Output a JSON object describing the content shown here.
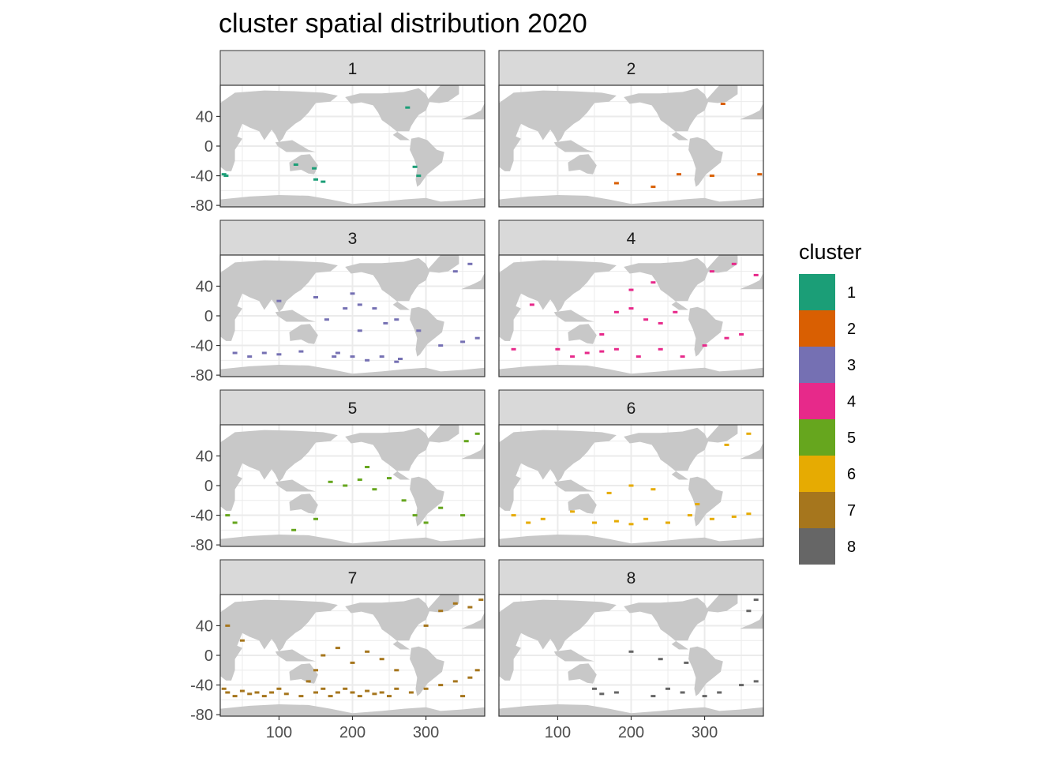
{
  "chart_data": {
    "type": "heatmap",
    "title": "cluster spatial distribution 2020",
    "xlabel": "",
    "ylabel": "",
    "facets": [
      "1",
      "2",
      "3",
      "4",
      "5",
      "6",
      "7",
      "8"
    ],
    "facet_layout": {
      "ncol": 2,
      "nrow": 4
    },
    "xlim": [
      20,
      380
    ],
    "ylim": [
      -82,
      82
    ],
    "x_ticks": [
      100,
      200,
      300
    ],
    "y_ticks": [
      40,
      0,
      -40,
      -80
    ],
    "grid": true,
    "legend": {
      "title": "cluster",
      "placement": "right",
      "entries": [
        {
          "label": "1",
          "color": "#1B9E77"
        },
        {
          "label": "2",
          "color": "#D95F02"
        },
        {
          "label": "3",
          "color": "#7570B3"
        },
        {
          "label": "4",
          "color": "#E7298A"
        },
        {
          "label": "5",
          "color": "#66A61E"
        },
        {
          "label": "6",
          "color": "#E6AB02"
        },
        {
          "label": "7",
          "color": "#A6761D"
        },
        {
          "label": "8",
          "color": "#666666"
        }
      ]
    },
    "land_color": "#C8C8C8",
    "clusters": [
      {
        "cluster": "1",
        "points": [
          [
            25,
            -38
          ],
          [
            28,
            -40
          ],
          [
            150,
            -45
          ],
          [
            160,
            -48
          ],
          [
            275,
            52
          ],
          [
            285,
            -28
          ],
          [
            290,
            -40
          ],
          [
            148,
            -30
          ],
          [
            123,
            -25
          ]
        ]
      },
      {
        "cluster": "2",
        "points": [
          [
            325,
            57
          ],
          [
            375,
            -38
          ],
          [
            310,
            -40
          ],
          [
            230,
            -55
          ],
          [
            265,
            -38
          ],
          [
            180,
            -50
          ]
        ]
      },
      {
        "cluster": "3",
        "points": [
          [
            100,
            20
          ],
          [
            150,
            25
          ],
          [
            190,
            10
          ],
          [
            200,
            30
          ],
          [
            210,
            15
          ],
          [
            230,
            10
          ],
          [
            245,
            -10
          ],
          [
            260,
            -5
          ],
          [
            290,
            -20
          ],
          [
            180,
            -50
          ],
          [
            200,
            -55
          ],
          [
            220,
            -60
          ],
          [
            240,
            -55
          ],
          [
            260,
            -62
          ],
          [
            100,
            -52
          ],
          [
            80,
            -50
          ],
          [
            60,
            -55
          ],
          [
            40,
            -50
          ],
          [
            340,
            60
          ],
          [
            360,
            70
          ],
          [
            320,
            -40
          ],
          [
            350,
            -35
          ],
          [
            210,
            -20
          ],
          [
            165,
            -5
          ],
          [
            130,
            -48
          ],
          [
            175,
            -55
          ],
          [
            265,
            -58
          ],
          [
            370,
            -30
          ]
        ]
      },
      {
        "cluster": "4",
        "points": [
          [
            65,
            15
          ],
          [
            180,
            5
          ],
          [
            200,
            10
          ],
          [
            220,
            -5
          ],
          [
            240,
            -10
          ],
          [
            260,
            5
          ],
          [
            300,
            -40
          ],
          [
            330,
            -30
          ],
          [
            350,
            -25
          ],
          [
            100,
            -45
          ],
          [
            120,
            -55
          ],
          [
            140,
            -50
          ],
          [
            160,
            -48
          ],
          [
            180,
            -45
          ],
          [
            210,
            -55
          ],
          [
            240,
            -45
          ],
          [
            270,
            -55
          ],
          [
            310,
            60
          ],
          [
            340,
            70
          ],
          [
            370,
            55
          ],
          [
            200,
            35
          ],
          [
            230,
            45
          ],
          [
            40,
            -45
          ],
          [
            160,
            -25
          ]
        ]
      },
      {
        "cluster": "5",
        "points": [
          [
            30,
            -40
          ],
          [
            40,
            -50
          ],
          [
            150,
            -45
          ],
          [
            170,
            5
          ],
          [
            190,
            0
          ],
          [
            210,
            8
          ],
          [
            230,
            -5
          ],
          [
            250,
            10
          ],
          [
            285,
            -40
          ],
          [
            300,
            -50
          ],
          [
            320,
            -30
          ],
          [
            350,
            -40
          ],
          [
            370,
            70
          ],
          [
            355,
            60
          ],
          [
            220,
            25
          ],
          [
            270,
            -20
          ],
          [
            120,
            -60
          ]
        ]
      },
      {
        "cluster": "6",
        "points": [
          [
            40,
            -40
          ],
          [
            60,
            -50
          ],
          [
            80,
            -45
          ],
          [
            120,
            -35
          ],
          [
            150,
            -50
          ],
          [
            180,
            -48
          ],
          [
            200,
            -52
          ],
          [
            220,
            -45
          ],
          [
            250,
            -50
          ],
          [
            280,
            -40
          ],
          [
            310,
            -45
          ],
          [
            340,
            -42
          ],
          [
            360,
            -38
          ],
          [
            330,
            55
          ],
          [
            360,
            70
          ],
          [
            230,
            -5
          ],
          [
            200,
            0
          ],
          [
            170,
            -10
          ],
          [
            290,
            -25
          ]
        ]
      },
      {
        "cluster": "7",
        "points": [
          [
            25,
            -45
          ],
          [
            30,
            -50
          ],
          [
            40,
            -55
          ],
          [
            50,
            -48
          ],
          [
            60,
            -52
          ],
          [
            70,
            -50
          ],
          [
            80,
            -55
          ],
          [
            90,
            -50
          ],
          [
            100,
            -45
          ],
          [
            110,
            -52
          ],
          [
            130,
            -55
          ],
          [
            150,
            -50
          ],
          [
            160,
            -45
          ],
          [
            170,
            -55
          ],
          [
            180,
            -50
          ],
          [
            190,
            -45
          ],
          [
            200,
            -50
          ],
          [
            210,
            -55
          ],
          [
            220,
            -48
          ],
          [
            230,
            -52
          ],
          [
            240,
            -50
          ],
          [
            250,
            -55
          ],
          [
            260,
            -45
          ],
          [
            280,
            -50
          ],
          [
            300,
            -45
          ],
          [
            320,
            -40
          ],
          [
            340,
            -35
          ],
          [
            360,
            -30
          ],
          [
            50,
            20
          ],
          [
            160,
            0
          ],
          [
            180,
            10
          ],
          [
            200,
            -10
          ],
          [
            220,
            5
          ],
          [
            240,
            -5
          ],
          [
            260,
            -20
          ],
          [
            340,
            70
          ],
          [
            360,
            65
          ],
          [
            375,
            75
          ],
          [
            320,
            60
          ],
          [
            300,
            40
          ],
          [
            30,
            40
          ],
          [
            370,
            -20
          ],
          [
            150,
            -20
          ],
          [
            140,
            -35
          ],
          [
            350,
            -55
          ]
        ]
      },
      {
        "cluster": "8",
        "points": [
          [
            200,
            5
          ],
          [
            240,
            -5
          ],
          [
            180,
            -50
          ],
          [
            230,
            -55
          ],
          [
            250,
            -45
          ],
          [
            270,
            -50
          ],
          [
            300,
            -55
          ],
          [
            320,
            -50
          ],
          [
            350,
            -40
          ],
          [
            370,
            -35
          ],
          [
            370,
            75
          ],
          [
            360,
            60
          ],
          [
            150,
            -45
          ],
          [
            160,
            -52
          ],
          [
            275,
            -10
          ]
        ]
      }
    ]
  }
}
